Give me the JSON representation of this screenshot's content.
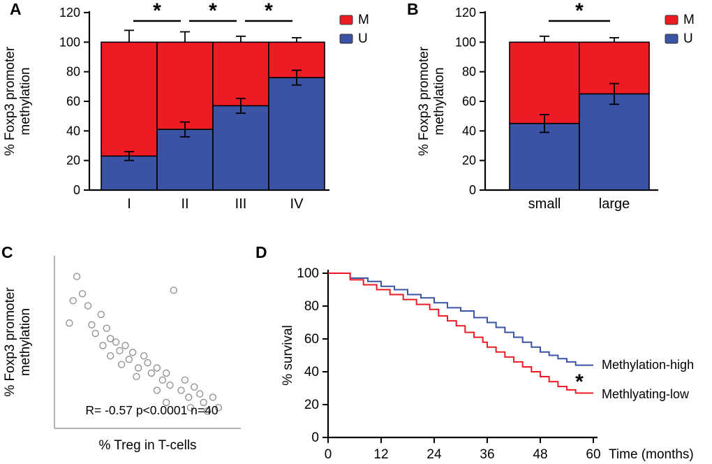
{
  "panels": [
    {
      "letter": "A"
    },
    {
      "letter": "B"
    },
    {
      "letter": "C"
    },
    {
      "letter": "D"
    }
  ],
  "colors": {
    "methylated_red": "#ed1c24",
    "unmethylated_blue": "#3a53a4",
    "axis_black": "#000000",
    "scatter_gray": "#8c8c8c"
  },
  "chart_data": [
    {
      "id": "A",
      "type": "bar",
      "subtype": "stacked",
      "title": "",
      "ylabel": "% Foxp3 promoter methylation",
      "ylabel_lines": [
        "% Foxp3 promoter",
        "methylation"
      ],
      "ylim": [
        0,
        120
      ],
      "yticks": [
        0,
        20,
        40,
        60,
        80,
        100,
        120
      ],
      "categories": [
        "I",
        "II",
        "III",
        "IV"
      ],
      "stack_total": 100,
      "series": [
        {
          "name": "U",
          "color": "#3a53a4",
          "values": [
            23,
            41,
            57,
            76
          ],
          "error": [
            3,
            5,
            5,
            5
          ]
        },
        {
          "name": "M",
          "color": "#ed1c24",
          "values": [
            77,
            59,
            43,
            24
          ],
          "error_top": [
            8,
            7,
            4,
            3
          ]
        }
      ],
      "legend": [
        {
          "label": "M",
          "color": "#ed1c24"
        },
        {
          "label": "U",
          "color": "#3a53a4"
        }
      ],
      "significance": [
        {
          "pair": [
            0,
            1
          ],
          "label": "*"
        },
        {
          "pair": [
            1,
            2
          ],
          "label": "*"
        },
        {
          "pair": [
            2,
            3
          ],
          "label": "*"
        }
      ]
    },
    {
      "id": "B",
      "type": "bar",
      "subtype": "stacked",
      "title": "",
      "ylabel": "% Foxp3 promoter methylation",
      "ylabel_lines": [
        "% Foxp3 promoter",
        "methylation"
      ],
      "ylim": [
        0,
        120
      ],
      "yticks": [
        0,
        20,
        40,
        60,
        80,
        100,
        120
      ],
      "categories": [
        "small",
        "large"
      ],
      "stack_total": 100,
      "series": [
        {
          "name": "U",
          "color": "#3a53a4",
          "values": [
            45,
            65
          ],
          "error": [
            6,
            7
          ]
        },
        {
          "name": "M",
          "color": "#ed1c24",
          "values": [
            55,
            35
          ],
          "error_top": [
            4,
            3
          ]
        }
      ],
      "legend": [
        {
          "label": "M",
          "color": "#ed1c24"
        },
        {
          "label": "U",
          "color": "#3a53a4"
        }
      ],
      "significance": [
        {
          "pair": [
            0,
            1
          ],
          "label": "*"
        }
      ]
    },
    {
      "id": "C",
      "type": "scatter",
      "title": "",
      "xlabel": "% Treg in T-cells",
      "ylabel": "% Foxp3 promoter methylation",
      "ylabel_lines": [
        "% Foxp3 promoter",
        "methylation"
      ],
      "annotation": "R= -0.57 p<0.0001 n=40",
      "stats": {
        "R": -0.57,
        "p": "<0.0001",
        "n": 40
      },
      "axes_unlabeled": true,
      "points_rel": [
        [
          12,
          88
        ],
        [
          15,
          78
        ],
        [
          10,
          74
        ],
        [
          18,
          71
        ],
        [
          8,
          61
        ],
        [
          20,
          60
        ],
        [
          25,
          66
        ],
        [
          22,
          55
        ],
        [
          28,
          58
        ],
        [
          30,
          52
        ],
        [
          26,
          48
        ],
        [
          33,
          50
        ],
        [
          35,
          45
        ],
        [
          30,
          42
        ],
        [
          38,
          48
        ],
        [
          40,
          40
        ],
        [
          36,
          37
        ],
        [
          42,
          44
        ],
        [
          45,
          35
        ],
        [
          48,
          42
        ],
        [
          50,
          38
        ],
        [
          44,
          30
        ],
        [
          52,
          32
        ],
        [
          55,
          35
        ],
        [
          58,
          28
        ],
        [
          60,
          32
        ],
        [
          62,
          25
        ],
        [
          64,
          80
        ],
        [
          55,
          22
        ],
        [
          68,
          22
        ],
        [
          70,
          28
        ],
        [
          72,
          18
        ],
        [
          75,
          24
        ],
        [
          60,
          15
        ],
        [
          78,
          20
        ],
        [
          80,
          15
        ],
        [
          73,
          12
        ],
        [
          82,
          10
        ],
        [
          85,
          18
        ],
        [
          88,
          12
        ]
      ]
    },
    {
      "id": "D",
      "type": "line",
      "subtype": "kaplan-meier",
      "title": "",
      "ylabel": "% survival",
      "xlabel": "Time (months)",
      "xlim": [
        0,
        60
      ],
      "ylim": [
        0,
        100
      ],
      "xticks": [
        0,
        12,
        24,
        36,
        48,
        60
      ],
      "yticks": [
        0,
        20,
        40,
        60,
        80,
        100
      ],
      "significance_label": "*",
      "series": [
        {
          "name": "Methylation-high",
          "color": "#3a53a4",
          "steps": [
            [
              0,
              100
            ],
            [
              5,
              97
            ],
            [
              9,
              95
            ],
            [
              12,
              92
            ],
            [
              15,
              90
            ],
            [
              18,
              87
            ],
            [
              21,
              85
            ],
            [
              24,
              82
            ],
            [
              27,
              79
            ],
            [
              30,
              77
            ],
            [
              33,
              73
            ],
            [
              36,
              70
            ],
            [
              38,
              67
            ],
            [
              40,
              64
            ],
            [
              42,
              61
            ],
            [
              44,
              58
            ],
            [
              46,
              55
            ],
            [
              48,
              52
            ],
            [
              50,
              50
            ],
            [
              52,
              48
            ],
            [
              54,
              46
            ],
            [
              56,
              44
            ],
            [
              60,
              44
            ]
          ]
        },
        {
          "name": "Methlyating-low",
          "color": "#ed1c24",
          "steps": [
            [
              0,
              100
            ],
            [
              5,
              96
            ],
            [
              8,
              93
            ],
            [
              11,
              90
            ],
            [
              14,
              87
            ],
            [
              17,
              84
            ],
            [
              20,
              81
            ],
            [
              23,
              78
            ],
            [
              25,
              74
            ],
            [
              27,
              71
            ],
            [
              29,
              68
            ],
            [
              31,
              64
            ],
            [
              33,
              61
            ],
            [
              35,
              58
            ],
            [
              36,
              55
            ],
            [
              38,
              52
            ],
            [
              40,
              49
            ],
            [
              42,
              46
            ],
            [
              44,
              43
            ],
            [
              46,
              40
            ],
            [
              48,
              37
            ],
            [
              50,
              34
            ],
            [
              52,
              31
            ],
            [
              54,
              29
            ],
            [
              56,
              27
            ],
            [
              60,
              27
            ]
          ]
        }
      ]
    }
  ]
}
